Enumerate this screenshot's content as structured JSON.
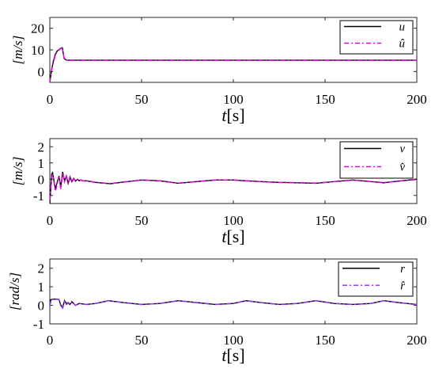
{
  "chart_data": [
    {
      "type": "line",
      "ylabel": "[m/s]",
      "xlabel": "t[s]",
      "xlabel_var": "t",
      "xlabel_unit": "[s]",
      "xlim": [
        0,
        200
      ],
      "ylim": [
        -5,
        25
      ],
      "xticks": [
        "0",
        "50",
        "100",
        "150",
        "200"
      ],
      "xtick_values": [
        0,
        50,
        100,
        150,
        200
      ],
      "yticks": [
        "0",
        "10",
        "20"
      ],
      "ytick_values": [
        0,
        10,
        20
      ],
      "legend_position": "top-right",
      "series": [
        {
          "name": "u",
          "color": "#000000",
          "style": "solid",
          "x": [
            0,
            1,
            2,
            3,
            4,
            5,
            6,
            6.8,
            7.2,
            7.8,
            9,
            12,
            20,
            40,
            60,
            80,
            100,
            120,
            140,
            160,
            180,
            200
          ],
          "y": [
            -5,
            1,
            5,
            8,
            9.5,
            10.2,
            10.8,
            11,
            9,
            6,
            5.3,
            5.2,
            5.2,
            5.2,
            5.2,
            5.2,
            5.2,
            5.2,
            5.2,
            5.2,
            5.2,
            5.2
          ]
        },
        {
          "name": "û",
          "color": "#e600e6",
          "style": "dashdot",
          "x": [
            0,
            1,
            2,
            3,
            4,
            5,
            6,
            6.8,
            7.2,
            7.8,
            9,
            12,
            20,
            40,
            60,
            80,
            100,
            120,
            140,
            160,
            180,
            200
          ],
          "y": [
            -5,
            0.5,
            4.5,
            7.5,
            9.2,
            10,
            10.7,
            11,
            9.2,
            6.2,
            5.3,
            5.2,
            5.2,
            5.2,
            5.2,
            5.2,
            5.2,
            5.2,
            5.2,
            5.2,
            5.2,
            5.2
          ]
        }
      ]
    },
    {
      "type": "line",
      "ylabel": "[m/s]",
      "xlabel": "t[s]",
      "xlabel_var": "t",
      "xlabel_unit": "[s]",
      "xlim": [
        0,
        200
      ],
      "ylim": [
        -1.5,
        2.5
      ],
      "xticks": [
        "0",
        "50",
        "100",
        "150",
        "200"
      ],
      "xtick_values": [
        0,
        50,
        100,
        150,
        200
      ],
      "yticks": [
        "-1",
        "0",
        "1",
        "2"
      ],
      "ytick_values": [
        -1,
        0,
        1,
        2
      ],
      "legend_position": "top-right",
      "series": [
        {
          "name": "v",
          "color": "#000000",
          "style": "solid",
          "x": [
            0,
            1,
            1.5,
            2,
            3,
            4,
            5,
            6,
            7,
            8,
            9,
            10,
            11,
            12,
            13,
            14,
            15,
            16,
            17,
            18,
            20,
            25,
            30,
            33,
            40,
            50,
            60,
            70,
            80,
            90,
            100,
            107,
            115,
            125,
            135,
            145,
            155,
            165,
            175,
            182,
            190,
            200
          ],
          "y": [
            -1.5,
            0.3,
            0.4,
            0.1,
            -0.6,
            -0.2,
            0.2,
            -0.5,
            0.45,
            -0.1,
            0.2,
            -0.25,
            0.15,
            -0.15,
            0.05,
            -0.12,
            0.0,
            -0.1,
            -0.05,
            -0.1,
            -0.1,
            -0.2,
            -0.25,
            -0.28,
            -0.18,
            -0.05,
            -0.1,
            -0.25,
            -0.15,
            -0.05,
            -0.05,
            -0.1,
            -0.15,
            -0.2,
            -0.22,
            -0.25,
            -0.15,
            -0.05,
            -0.15,
            -0.22,
            -0.12,
            0.0
          ]
        },
        {
          "name": "v̂",
          "color": "#e600e6",
          "style": "dashdot",
          "x": [
            0,
            1,
            1.5,
            2,
            3,
            4,
            5,
            6,
            7,
            8,
            9,
            10,
            11,
            12,
            13,
            14,
            15,
            16,
            17,
            18,
            20,
            25,
            30,
            33,
            40,
            50,
            60,
            70,
            80,
            90,
            100,
            107,
            115,
            125,
            135,
            145,
            155,
            165,
            175,
            182,
            190,
            200
          ],
          "y": [
            -1.3,
            0.1,
            0.3,
            0.05,
            -0.75,
            -0.3,
            0.15,
            -0.6,
            0.4,
            -0.15,
            0.15,
            -0.3,
            0.1,
            -0.18,
            0.02,
            -0.14,
            -0.02,
            -0.1,
            -0.05,
            -0.1,
            -0.1,
            -0.2,
            -0.24,
            -0.27,
            -0.18,
            -0.05,
            -0.1,
            -0.24,
            -0.15,
            -0.05,
            -0.05,
            -0.1,
            -0.15,
            -0.2,
            -0.22,
            -0.24,
            -0.15,
            -0.05,
            -0.15,
            -0.21,
            -0.12,
            -0.02
          ]
        }
      ]
    },
    {
      "type": "line",
      "ylabel": "[rad/s]",
      "xlabel": "t[s]",
      "xlabel_var": "t",
      "xlabel_unit": "[s]",
      "xlim": [
        0,
        200
      ],
      "ylim": [
        -1,
        2.5
      ],
      "xticks": [
        "0",
        "50",
        "100",
        "150",
        "200"
      ],
      "xtick_values": [
        0,
        50,
        100,
        150,
        200
      ],
      "yticks": [
        "-1",
        "0",
        "1",
        "2"
      ],
      "ytick_values": [
        -1,
        0,
        1,
        2
      ],
      "legend_position": "top-right",
      "series": [
        {
          "name": "r",
          "color": "#000000",
          "style": "solid",
          "x": [
            0,
            0.5,
            1,
            2,
            3,
            4,
            5,
            6,
            7,
            8,
            9,
            10,
            11,
            12,
            14,
            16,
            20,
            25,
            32,
            40,
            50,
            60,
            70,
            80,
            90,
            100,
            107,
            115,
            125,
            135,
            145,
            155,
            165,
            175,
            182,
            190,
            200
          ],
          "y": [
            0.0,
            0.3,
            0.32,
            0.33,
            0.33,
            0.33,
            0.32,
            0.0,
            -0.1,
            0.25,
            0.1,
            0.15,
            0.05,
            0.2,
            0.0,
            0.1,
            0.05,
            0.1,
            0.25,
            0.15,
            0.05,
            0.1,
            0.25,
            0.15,
            0.05,
            0.1,
            0.25,
            0.15,
            0.05,
            0.1,
            0.25,
            0.1,
            0.05,
            0.1,
            0.25,
            0.15,
            0.05
          ]
        },
        {
          "name": "r̂",
          "color": "#9933ff",
          "style": "dashdot",
          "x": [
            0,
            0.5,
            1,
            2,
            3,
            4,
            5,
            6,
            7,
            8,
            9,
            10,
            11,
            12,
            14,
            16,
            20,
            25,
            32,
            40,
            50,
            60,
            70,
            80,
            90,
            100,
            107,
            115,
            125,
            135,
            145,
            155,
            165,
            175,
            182,
            190,
            200
          ],
          "y": [
            -0.05,
            0.2,
            0.3,
            0.33,
            0.33,
            0.33,
            0.3,
            -0.05,
            -0.15,
            0.2,
            0.05,
            0.12,
            0.02,
            0.18,
            0.0,
            0.1,
            0.05,
            0.1,
            0.25,
            0.15,
            0.05,
            0.1,
            0.25,
            0.15,
            0.05,
            0.1,
            0.25,
            0.15,
            0.05,
            0.1,
            0.25,
            0.1,
            0.05,
            0.1,
            0.25,
            0.15,
            0.05
          ]
        }
      ]
    }
  ]
}
